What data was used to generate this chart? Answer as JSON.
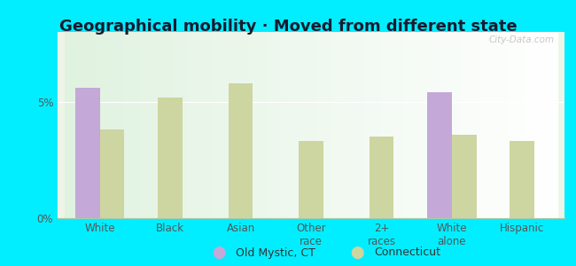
{
  "title": "Geographical mobility · Moved from different state",
  "categories": [
    "White",
    "Black",
    "Asian",
    "Other\nrace",
    "2+\nraces",
    "White\nalone",
    "Hispanic"
  ],
  "old_mystic": [
    5.6,
    0,
    0,
    0,
    0,
    5.4,
    0
  ],
  "connecticut": [
    3.8,
    5.2,
    5.8,
    3.3,
    3.5,
    3.6,
    3.3
  ],
  "has_old_mystic": [
    true,
    false,
    false,
    false,
    false,
    true,
    false
  ],
  "bar_color_old_mystic": "#c4a8d8",
  "bar_color_connecticut": "#cdd5a0",
  "background_outer": "#00eeff",
  "background_plot_color": "#e8f5e9",
  "ylim": [
    0,
    8
  ],
  "yticks": [
    0,
    5
  ],
  "ytick_labels": [
    "0%",
    "5%"
  ],
  "legend_label_1": "Old Mystic, CT",
  "legend_label_2": "Connecticut",
  "title_fontsize": 13,
  "tick_fontsize": 8.5,
  "legend_fontsize": 9,
  "bar_width": 0.35,
  "watermark": "City-Data.com"
}
